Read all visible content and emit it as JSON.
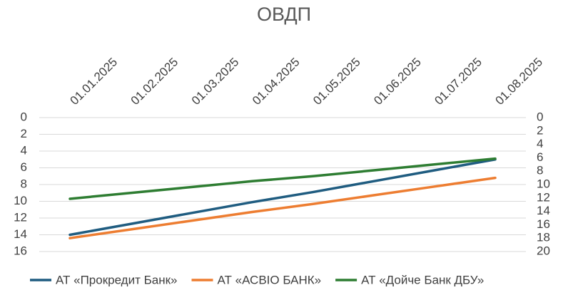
{
  "chart_data": {
    "type": "line",
    "title": "ОВДП",
    "categories": [
      "01.01.2025",
      "01.02.2025",
      "01.03.2025",
      "01.04.2025",
      "01.05.2025",
      "01.06.2025",
      "01.07.2025",
      "01.08.2025"
    ],
    "series": [
      {
        "name": "АТ «Прокредит Банк»",
        "color": "#1f5c80",
        "values": [
          14,
          12.7,
          11.4,
          10.1,
          8.9,
          7.6,
          6.3,
          5
        ]
      },
      {
        "name": "АТ «АСВІО БАНК»",
        "color": "#ed7d31",
        "axis": "y2",
        "values": [
          18,
          16.7,
          15.4,
          14.1,
          12.9,
          11.6,
          10.3,
          9
        ]
      },
      {
        "name": "АТ «Дойче Банк ДБУ»",
        "color": "#2e7d32",
        "values": [
          9.7,
          9.0,
          8.3,
          7.6,
          7.0,
          6.3,
          5.6,
          4.9
        ]
      }
    ],
    "ylim": [
      16,
      0
    ],
    "yticks": [
      0,
      2,
      4,
      6,
      8,
      10,
      12,
      14,
      16
    ],
    "y2lim": [
      20,
      0
    ],
    "y2ticks": [
      0,
      2,
      4,
      6,
      8,
      10,
      12,
      14,
      16,
      18,
      20
    ],
    "grid": true,
    "legend": "bottom"
  }
}
